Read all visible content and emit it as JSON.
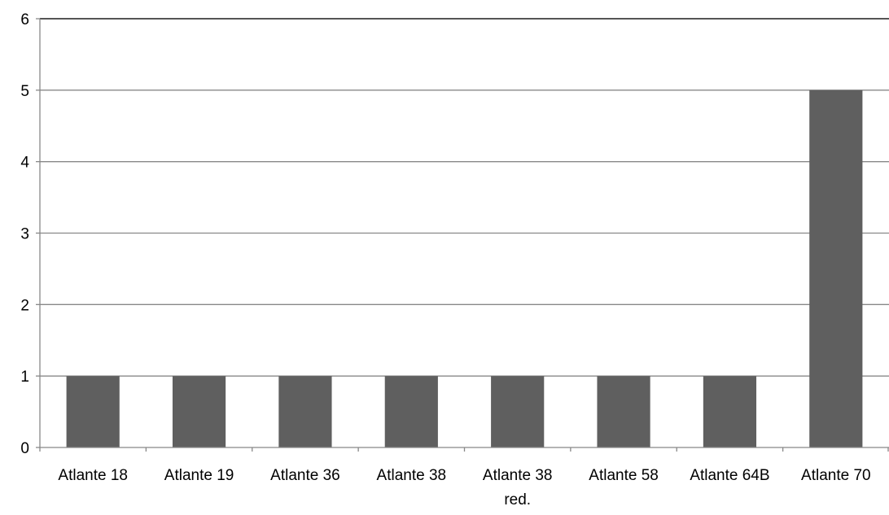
{
  "chart_data": {
    "type": "bar",
    "title": "",
    "xlabel": "",
    "ylabel": "",
    "categories": [
      [
        "Atlante 18"
      ],
      [
        "Atlante 19"
      ],
      [
        "Atlante 36"
      ],
      [
        "Atlante 38"
      ],
      [
        "Atlante 38",
        "red."
      ],
      [
        "Atlante 58"
      ],
      [
        "Atlante 64B"
      ],
      [
        "Atlante 70"
      ]
    ],
    "values": [
      1,
      1,
      1,
      1,
      1,
      1,
      1,
      5
    ],
    "ylim": [
      0,
      6
    ],
    "yticks": [
      "0",
      "1",
      "2",
      "3",
      "4",
      "5",
      "6"
    ],
    "grid": true,
    "legend": "none",
    "colors": {
      "bar": "#5f5f5f",
      "grid": "#888888",
      "axis": "#888888",
      "text": "#000000"
    }
  }
}
